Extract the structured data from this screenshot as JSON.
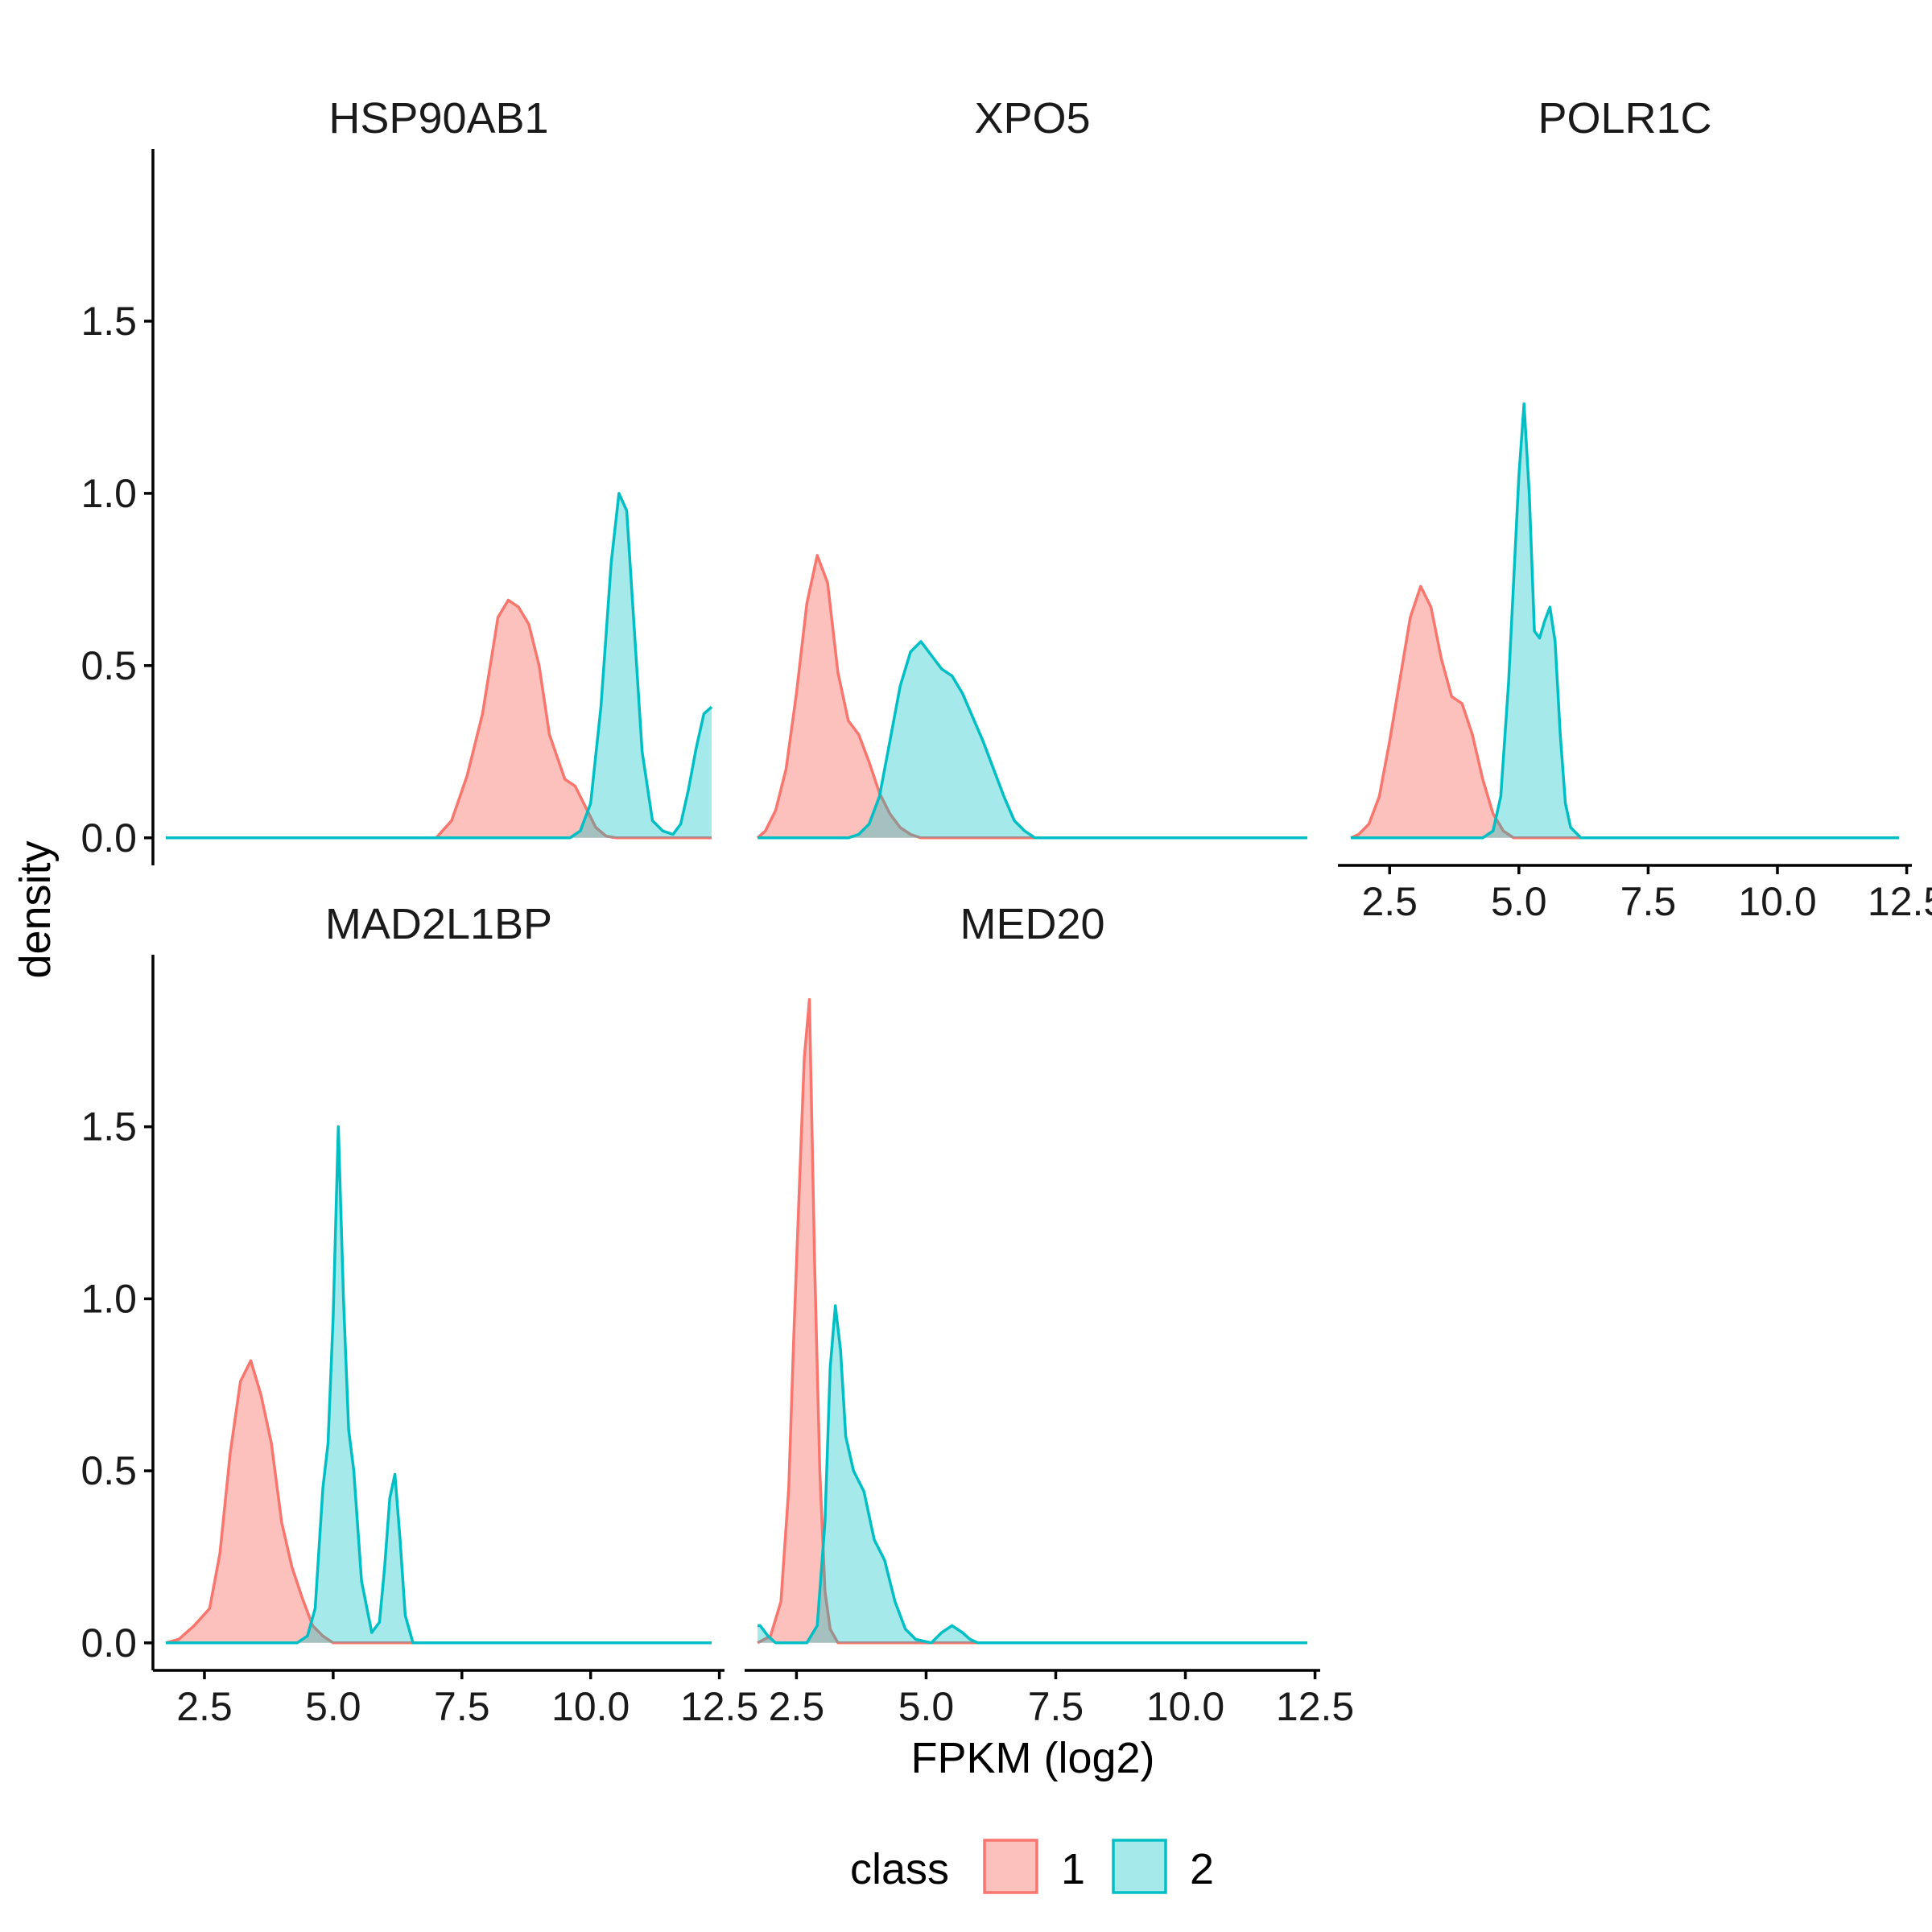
{
  "chart_data": {
    "type": "area",
    "subtype": "density",
    "xlabel": "FPKM (log2)",
    "ylabel": "density",
    "xlim": [
      1.5,
      12.6
    ],
    "ylim": [
      -0.08,
      2.0
    ],
    "xticks": [
      "2.5",
      "5.0",
      "7.5",
      "10.0",
      "12.5"
    ],
    "xtick_values": [
      2.5,
      5.0,
      7.5,
      10.0,
      12.5
    ],
    "yticks": [
      "0.0",
      "0.5",
      "1.0",
      "1.5"
    ],
    "ytick_values": [
      0.0,
      0.5,
      1.0,
      1.5
    ],
    "legend": {
      "title": "class",
      "position": "bottom",
      "entries": [
        {
          "label": "1",
          "fill": "#F8766D",
          "stroke": "#F8766D"
        },
        {
          "label": "2",
          "fill": "#00BFC4",
          "stroke": "#00BFC4"
        }
      ]
    },
    "panels": [
      {
        "title": "HSP90AB1",
        "series": [
          {
            "name": "1",
            "x": [
              1.75,
              7.0,
              7.3,
              7.6,
              7.9,
              8.2,
              8.4,
              8.6,
              8.8,
              9.0,
              9.2,
              9.5,
              9.7,
              9.9,
              10.1,
              10.3,
              10.5,
              12.35
            ],
            "y": [
              0,
              0,
              0.05,
              0.18,
              0.36,
              0.64,
              0.69,
              0.67,
              0.62,
              0.5,
              0.3,
              0.17,
              0.15,
              0.09,
              0.03,
              0.005,
              0,
              0
            ]
          },
          {
            "name": "2",
            "x": [
              1.75,
              9.6,
              9.8,
              10.0,
              10.2,
              10.4,
              10.55,
              10.7,
              10.85,
              11.0,
              11.2,
              11.4,
              11.6,
              11.75,
              11.9,
              12.05,
              12.2,
              12.35
            ],
            "y": [
              0,
              0,
              0.02,
              0.1,
              0.38,
              0.8,
              1.0,
              0.95,
              0.6,
              0.25,
              0.05,
              0.02,
              0.01,
              0.04,
              0.14,
              0.26,
              0.36,
              0.38
            ]
          }
        ]
      },
      {
        "title": "XPO5",
        "series": [
          {
            "name": "1",
            "x": [
              1.75,
              1.9,
              2.1,
              2.3,
              2.5,
              2.7,
              2.9,
              3.1,
              3.3,
              3.5,
              3.7,
              3.9,
              4.1,
              4.3,
              4.5,
              4.7,
              4.9,
              12.35
            ],
            "y": [
              0,
              0.02,
              0.08,
              0.2,
              0.42,
              0.68,
              0.82,
              0.74,
              0.48,
              0.34,
              0.3,
              0.22,
              0.13,
              0.07,
              0.03,
              0.01,
              0,
              0
            ]
          },
          {
            "name": "2",
            "x": [
              1.75,
              3.5,
              3.7,
              3.9,
              4.1,
              4.3,
              4.5,
              4.7,
              4.9,
              5.1,
              5.3,
              5.5,
              5.7,
              5.9,
              6.1,
              6.3,
              6.5,
              6.7,
              6.9,
              7.1,
              12.35
            ],
            "y": [
              0,
              0,
              0.01,
              0.04,
              0.12,
              0.28,
              0.44,
              0.54,
              0.57,
              0.53,
              0.49,
              0.47,
              0.42,
              0.35,
              0.28,
              0.2,
              0.12,
              0.05,
              0.02,
              0,
              0
            ]
          }
        ]
      },
      {
        "title": "POLR1C",
        "series": [
          {
            "name": "1",
            "x": [
              1.75,
              1.9,
              2.1,
              2.3,
              2.5,
              2.7,
              2.9,
              3.1,
              3.3,
              3.5,
              3.7,
              3.9,
              4.1,
              4.3,
              4.5,
              4.7,
              4.9,
              12.35
            ],
            "y": [
              0,
              0.01,
              0.04,
              0.12,
              0.28,
              0.46,
              0.64,
              0.73,
              0.67,
              0.52,
              0.41,
              0.39,
              0.3,
              0.17,
              0.07,
              0.02,
              0,
              0
            ]
          },
          {
            "name": "2",
            "x": [
              1.75,
              4.3,
              4.5,
              4.65,
              4.8,
              4.9,
              5.0,
              5.1,
              5.2,
              5.3,
              5.4,
              5.5,
              5.6,
              5.7,
              5.8,
              5.9,
              6.0,
              6.2,
              12.35
            ],
            "y": [
              0,
              0,
              0.02,
              0.12,
              0.45,
              0.75,
              1.05,
              1.26,
              1.0,
              0.6,
              0.58,
              0.63,
              0.67,
              0.57,
              0.3,
              0.1,
              0.03,
              0,
              0
            ]
          }
        ]
      },
      {
        "title": "MAD2L1BP",
        "series": [
          {
            "name": "1",
            "x": [
              1.75,
              2.0,
              2.3,
              2.6,
              2.8,
              3.0,
              3.2,
              3.4,
              3.6,
              3.8,
              4.0,
              4.2,
              4.4,
              4.6,
              4.8,
              5.0,
              12.35
            ],
            "y": [
              0,
              0.01,
              0.05,
              0.1,
              0.26,
              0.55,
              0.76,
              0.82,
              0.72,
              0.58,
              0.35,
              0.22,
              0.13,
              0.05,
              0.02,
              0,
              0
            ]
          },
          {
            "name": "2",
            "x": [
              1.75,
              4.3,
              4.5,
              4.65,
              4.8,
              4.9,
              5.0,
              5.1,
              5.2,
              5.3,
              5.4,
              5.55,
              5.75,
              5.9,
              6.0,
              6.1,
              6.2,
              6.3,
              6.4,
              6.55,
              12.35
            ],
            "y": [
              0,
              0,
              0.02,
              0.1,
              0.45,
              0.58,
              0.95,
              1.5,
              1.0,
              0.62,
              0.5,
              0.18,
              0.03,
              0.06,
              0.22,
              0.42,
              0.49,
              0.3,
              0.08,
              0,
              0
            ]
          }
        ]
      },
      {
        "title": "MED20",
        "series": [
          {
            "name": "1",
            "x": [
              1.75,
              2.0,
              2.2,
              2.35,
              2.45,
              2.55,
              2.65,
              2.75,
              2.85,
              2.95,
              3.05,
              3.15,
              3.3,
              12.35
            ],
            "y": [
              0,
              0.02,
              0.12,
              0.45,
              0.9,
              1.3,
              1.7,
              1.87,
              1.1,
              0.5,
              0.15,
              0.04,
              0,
              0
            ]
          },
          {
            "name": "2",
            "x": [
              1.75,
              1.8,
              1.95,
              2.1,
              2.7,
              2.9,
              3.05,
              3.15,
              3.25,
              3.35,
              3.45,
              3.6,
              3.8,
              4.0,
              4.2,
              4.4,
              4.6,
              4.8,
              5.1,
              5.3,
              5.5,
              5.7,
              5.85,
              6.0,
              12.35
            ],
            "y": [
              0.05,
              0.05,
              0.02,
              0,
              0,
              0.05,
              0.35,
              0.8,
              0.98,
              0.85,
              0.6,
              0.5,
              0.44,
              0.3,
              0.24,
              0.12,
              0.04,
              0.01,
              0,
              0.03,
              0.05,
              0.03,
              0.01,
              0,
              0
            ]
          }
        ]
      }
    ]
  }
}
